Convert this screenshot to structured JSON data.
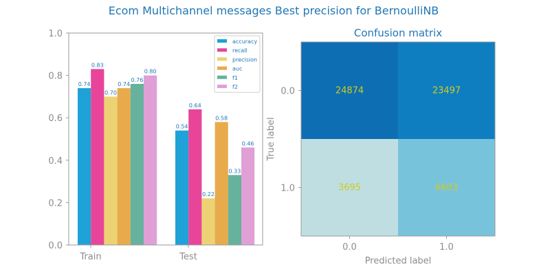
{
  "figure": {
    "title": "Ecom Multichannel messages Best precision for BernoulliNB"
  },
  "chart_data": [
    {
      "type": "bar",
      "categories": [
        "Train",
        "Test"
      ],
      "ylim": [
        0,
        1
      ],
      "yticks": [
        "0.0",
        "0.2",
        "0.4",
        "0.6",
        "0.8",
        "1.0"
      ],
      "legend_position": "top-right",
      "grid": false,
      "series": [
        {
          "name": "accuracy",
          "color": "#1ea2d8",
          "values": [
            0.74,
            0.54
          ],
          "labels": [
            "0.74",
            "0.54"
          ]
        },
        {
          "name": "recall",
          "color": "#e8459a",
          "values": [
            0.83,
            0.64
          ],
          "labels": [
            "0.83",
            "0.64"
          ]
        },
        {
          "name": "precision",
          "color": "#edd273",
          "values": [
            0.7,
            0.22
          ],
          "labels": [
            "0.70",
            "0.22"
          ]
        },
        {
          "name": "auc",
          "color": "#e8ab4c",
          "values": [
            0.74,
            0.58
          ],
          "labels": [
            "0.74",
            "0.58"
          ]
        },
        {
          "name": "f1",
          "color": "#66b29d",
          "values": [
            0.76,
            0.33
          ],
          "labels": [
            "0.76",
            "0.33"
          ]
        },
        {
          "name": "f2",
          "color": "#e0a0d6",
          "values": [
            0.8,
            0.46
          ],
          "labels": [
            "0.80",
            "0.46"
          ]
        }
      ]
    },
    {
      "type": "heatmap",
      "title": "Confusion matrix",
      "xlabel": "Predicted label",
      "ylabel": "True label",
      "x_tick_labels": [
        "0.0",
        "1.0"
      ],
      "y_tick_labels": [
        "0.0",
        "1.0"
      ],
      "matrix": [
        [
          24874,
          23497
        ],
        [
          3695,
          6603
        ]
      ],
      "cell_labels": [
        [
          "24874",
          "23497"
        ],
        [
          "3695",
          "6603"
        ]
      ],
      "cell_colors": [
        [
          "#0d6eb3",
          "#0f7ec0"
        ],
        [
          "#bfdee2",
          "#78c3dc"
        ]
      ]
    }
  ]
}
